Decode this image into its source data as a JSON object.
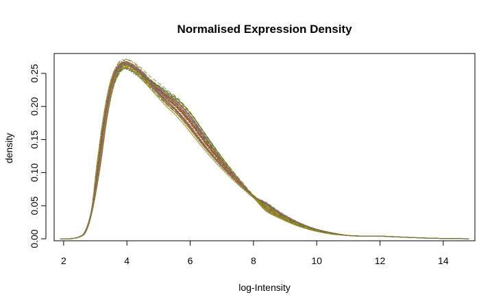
{
  "chart_data": {
    "type": "line",
    "title": "Normalised Expression Density",
    "xlabel": "log-Intensity",
    "ylabel": "density",
    "xlim": [
      1.7,
      15.0
    ],
    "ylim": [
      -0.003,
      0.28
    ],
    "xticks": [
      2,
      4,
      6,
      8,
      10,
      12,
      14
    ],
    "xtick_labels": [
      "2",
      "4",
      "6",
      "8",
      "10",
      "12",
      "14"
    ],
    "yticks": [
      0.0,
      0.05,
      0.1,
      0.15,
      0.2,
      0.25
    ],
    "ytick_labels": [
      "0.00",
      "0.05",
      "0.10",
      "0.15",
      "0.20",
      "0.25"
    ],
    "grid": false,
    "legend": "none",
    "line_colors": [
      "#8b6508",
      "#b8860b",
      "#9e9a2a",
      "#7a8c2c",
      "#a0522d",
      "#6b8e23",
      "#cd950c",
      "#8b4789",
      "#9932cc",
      "#2e8b57",
      "#556b2f",
      "#b06aa0",
      "#a68b2d",
      "#c79a2e",
      "#7f6a3c",
      "#5f7a3a"
    ],
    "curve_count": 48,
    "x": [
      1.9,
      2.2,
      2.5,
      2.7,
      2.9,
      3.1,
      3.3,
      3.5,
      3.7,
      3.9,
      4.1,
      4.4,
      4.7,
      5.0,
      5.3,
      5.6,
      6.0,
      6.4,
      6.8,
      7.2,
      7.6,
      8.0,
      8.4,
      8.8,
      9.2,
      9.6,
      10.0,
      10.5,
      11.0,
      11.5,
      12.0,
      12.5,
      13.0,
      13.5,
      14.0,
      14.5,
      14.8
    ],
    "series": [
      {
        "values": [
          0.0,
          0.0,
          0.003,
          0.012,
          0.045,
          0.11,
          0.18,
          0.23,
          0.255,
          0.264,
          0.262,
          0.252,
          0.238,
          0.225,
          0.212,
          0.2,
          0.178,
          0.152,
          0.127,
          0.104,
          0.083,
          0.064,
          0.049,
          0.037,
          0.027,
          0.019,
          0.013,
          0.008,
          0.005,
          0.004,
          0.004,
          0.003,
          0.002,
          0.001,
          0.0005,
          0.0002,
          0.0
        ]
      }
    ]
  }
}
